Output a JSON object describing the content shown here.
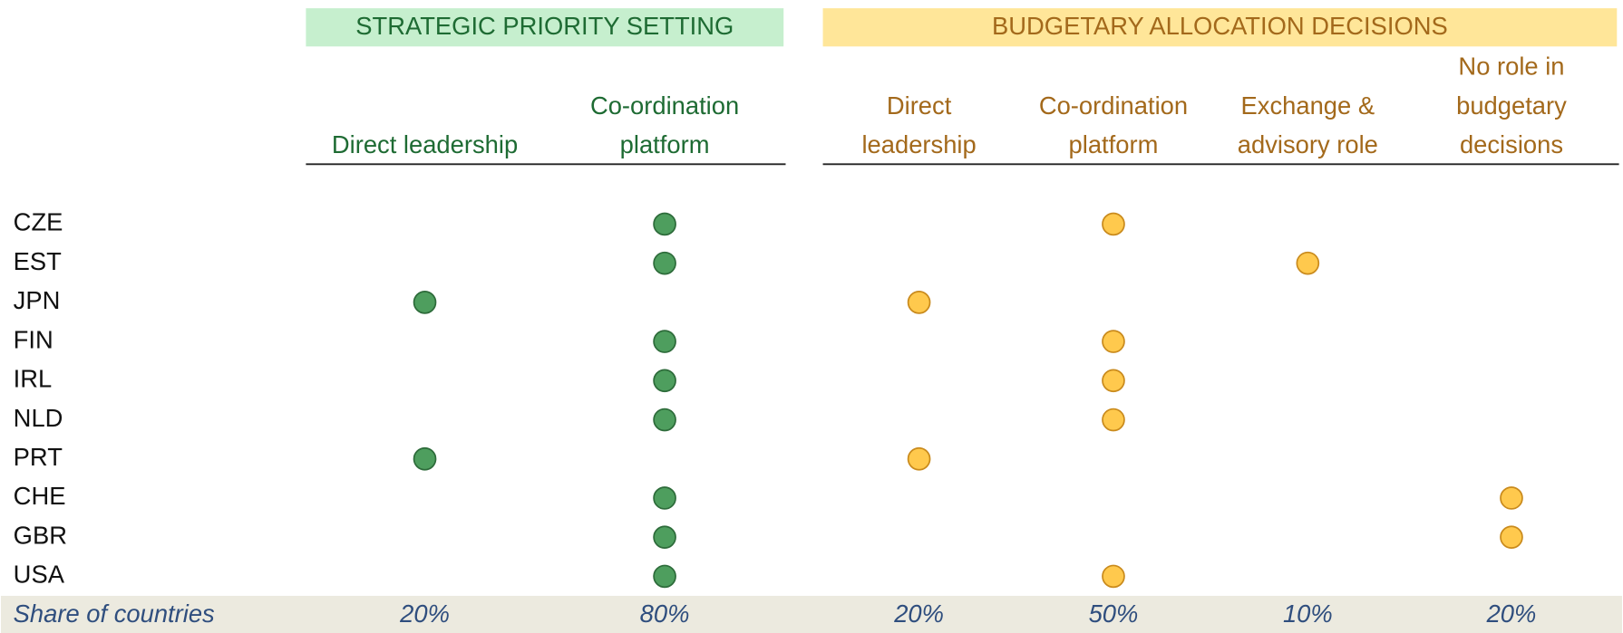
{
  "groups": [
    {
      "title": "STRATEGIC PRIORITY SETTING",
      "fill": "#c6efce",
      "text_color": "#1e6b33",
      "dot_color": "#4e9e5e",
      "dot_stroke": "#2d6b3a",
      "columns": [
        [
          "Direct leadership"
        ],
        [
          "Co-ordination",
          "platform"
        ]
      ]
    },
    {
      "title": "BUDGETARY ALLOCATION DECISIONS",
      "fill": "#ffe699",
      "text_color": "#a3691b",
      "dot_color": "#ffc94d",
      "dot_stroke": "#c98a1c",
      "columns": [
        [
          "Direct",
          "leadership"
        ],
        [
          "Co-ordination",
          "platform"
        ],
        [
          "Exchange &",
          "advisory role"
        ],
        [
          "No role in",
          "budgetary",
          "decisions"
        ]
      ]
    }
  ],
  "rows": [
    {
      "country": "CZE",
      "marks": [
        1,
        1
      ]
    },
    {
      "country": "EST",
      "marks": [
        1,
        2
      ]
    },
    {
      "country": "JPN",
      "marks": [
        0,
        0
      ]
    },
    {
      "country": "FIN",
      "marks": [
        1,
        1
      ]
    },
    {
      "country": "IRL",
      "marks": [
        1,
        1
      ]
    },
    {
      "country": "NLD",
      "marks": [
        1,
        1
      ]
    },
    {
      "country": "PRT",
      "marks": [
        0,
        0
      ]
    },
    {
      "country": "CHE",
      "marks": [
        1,
        3
      ]
    },
    {
      "country": "GBR",
      "marks": [
        1,
        3
      ]
    },
    {
      "country": "USA",
      "marks": [
        1,
        1
      ]
    }
  ],
  "footer": {
    "label": "Share of countries",
    "shares": [
      "20%",
      "80%",
      "20%",
      "50%",
      "10%",
      "20%"
    ]
  }
}
